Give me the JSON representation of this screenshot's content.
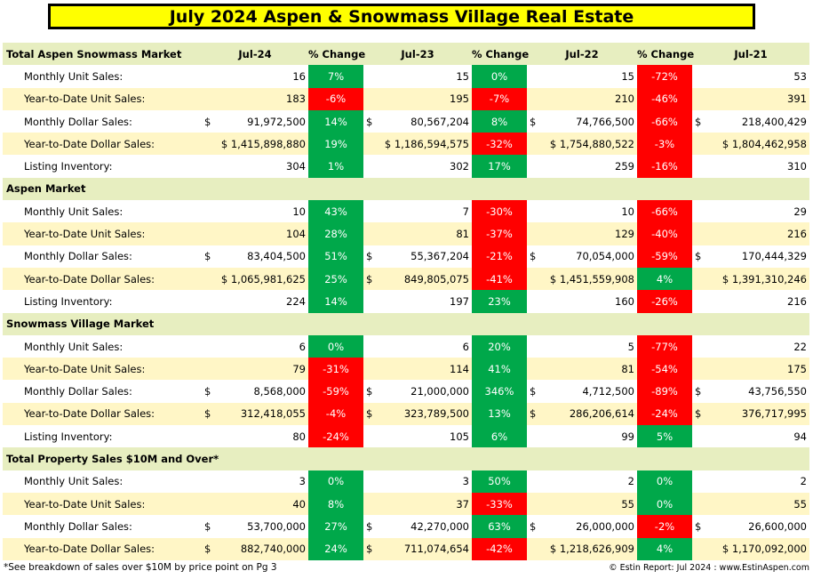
{
  "title": "July 2024 Aspen & Snowmass Village Real Estate",
  "columns": [
    "Jul-24",
    "% Change",
    "Jul-23",
    "% Change",
    "Jul-22",
    "% Change",
    "Jul-21"
  ],
  "sections": [
    {
      "name": "Total Aspen Snowmass Market",
      "rows": [
        {
          "label": "Monthly Unit Sales:",
          "jul24": "16",
          "chg1": "7%",
          "jul23": "15",
          "chg2": "0%",
          "jul22": "15",
          "chg3": "-72%",
          "jul21": "53"
        },
        {
          "label": "Year-to-Date Unit Sales:",
          "jul24": "183",
          "chg1": "-6%",
          "jul23": "195",
          "chg2": "-7%",
          "jul22": "210",
          "chg3": "-46%",
          "jul21": "391"
        },
        {
          "label": "Monthly Dollar Sales:",
          "jul24": "$ | 91,972,500",
          "chg1": "14%",
          "jul23": "$ | 80,567,204",
          "chg2": "8%",
          "jul22": "$ | 74,766,500",
          "chg3": "-66%",
          "jul21": "$ | 218,400,429"
        },
        {
          "label": "Year-to-Date Dollar Sales:",
          "jul24": "$ 1,415,898,880",
          "chg1": "19%",
          "jul23": "$ 1,186,594,575",
          "chg2": "-32%",
          "jul22": "$ 1,754,880,522",
          "chg3": "-3%",
          "jul21": "$ 1,804,462,958"
        },
        {
          "label": "Listing Inventory:",
          "jul24": "304",
          "chg1": "1%",
          "jul23": "302",
          "chg2": "17%",
          "jul22": "259",
          "chg3": "-16%",
          "jul21": "310"
        }
      ]
    },
    {
      "name": "Aspen Market",
      "rows": [
        {
          "label": "Monthly Unit Sales:",
          "jul24": "10",
          "chg1": "43%",
          "jul23": "7",
          "chg2": "-30%",
          "jul22": "10",
          "chg3": "-66%",
          "jul21": "29"
        },
        {
          "label": "Year-to-Date Unit Sales:",
          "jul24": "104",
          "chg1": "28%",
          "jul23": "81",
          "chg2": "-37%",
          "jul22": "129",
          "chg3": "-40%",
          "jul21": "216"
        },
        {
          "label": "Monthly Dollar Sales:",
          "jul24": "$ | 83,404,500",
          "chg1": "51%",
          "jul23": "$ | 55,367,204",
          "chg2": "-21%",
          "jul22": "$ | 70,054,000",
          "chg3": "-59%",
          "jul21": "$ | 170,444,329"
        },
        {
          "label": "Year-to-Date Dollar Sales:",
          "jul24": "$ 1,065,981,625",
          "chg1": "25%",
          "jul23": "$ | 849,805,075",
          "chg2": "-41%",
          "jul22": "$ 1,451,559,908",
          "chg3": "4%",
          "jul21": "$ 1,391,310,246"
        },
        {
          "label": "Listing Inventory:",
          "jul24": "224",
          "chg1": "14%",
          "jul23": "197",
          "chg2": "23%",
          "jul22": "160",
          "chg3": "-26%",
          "jul21": "216"
        }
      ]
    },
    {
      "name": "Snowmass Village Market",
      "rows": [
        {
          "label": "Monthly Unit Sales:",
          "jul24": "6",
          "chg1": "0%",
          "jul23": "6",
          "chg2": "20%",
          "jul22": "5",
          "chg3": "-77%",
          "jul21": "22"
        },
        {
          "label": "Year-to-Date Unit Sales:",
          "jul24": "79",
          "chg1": "-31%",
          "jul23": "114",
          "chg2": "41%",
          "jul22": "81",
          "chg3": "-54%",
          "jul21": "175"
        },
        {
          "label": "Monthly Dollar Sales:",
          "jul24": "$ | 8,568,000",
          "chg1": "-59%",
          "jul23": "$ | 21,000,000",
          "chg2": "346%",
          "jul22": "$ | 4,712,500",
          "chg3": "-89%",
          "jul21": "$ | 43,756,550"
        },
        {
          "label": "Year-to-Date Dollar Sales:",
          "jul24": "$ | 312,418,055",
          "chg1": "-4%",
          "jul23": "$ | 323,789,500",
          "chg2": "13%",
          "jul22": "$ | 286,206,614",
          "chg3": "-24%",
          "jul21": "$ | 376,717,995"
        },
        {
          "label": "Listing Inventory:",
          "jul24": "80",
          "chg1": "-24%",
          "jul23": "105",
          "chg2": "6%",
          "jul22": "99",
          "chg3": "5%",
          "jul21": "94"
        }
      ]
    },
    {
      "name": "Total Property Sales $10M and Over*",
      "rows": [
        {
          "label": "Monthly Unit Sales:",
          "jul24": "3",
          "chg1": "0%",
          "jul23": "3",
          "chg2": "50%",
          "jul22": "2",
          "chg3": "0%",
          "jul21": "2"
        },
        {
          "label": "Year-to-Date Unit Sales:",
          "jul24": "40",
          "chg1": "8%",
          "jul23": "37",
          "chg2": "-33%",
          "jul22": "55",
          "chg3": "0%",
          "jul21": "55"
        },
        {
          "label": "Monthly Dollar Sales:",
          "jul24": "$ | 53,700,000",
          "chg1": "27%",
          "jul23": "$ | 42,270,000",
          "chg2": "63%",
          "jul22": "$ | 26,000,000",
          "chg3": "-2%",
          "jul21": "$ | 26,600,000"
        },
        {
          "label": "Year-to-Date Dollar Sales:",
          "jul24": "$ | 882,740,000",
          "chg1": "24%",
          "jul23": "$ | 711,074,654",
          "chg2": "-42%",
          "jul22": "$ 1,218,626,909",
          "chg3": "4%",
          "jul21": "$ 1,170,092,000"
        }
      ]
    }
  ],
  "footer_note": "*See breakdown of sales over $10M by price point on Pg 3",
  "footer_credit": "© Estin Report: Jul 2024 : www.EstinAspen.com",
  "colors": {
    "positive": "#00a84a",
    "negative": "#ff0000",
    "header_bg": "#e7eec0",
    "alt_row": "#fff6c6",
    "title_bg": "#ffff00"
  },
  "chart_data": {
    "type": "table",
    "title": "July 2024 Aspen & Snowmass Village Real Estate",
    "columns": [
      "Jul-24",
      "% Change",
      "Jul-23",
      "% Change",
      "Jul-22",
      "% Change",
      "Jul-21"
    ]
  }
}
